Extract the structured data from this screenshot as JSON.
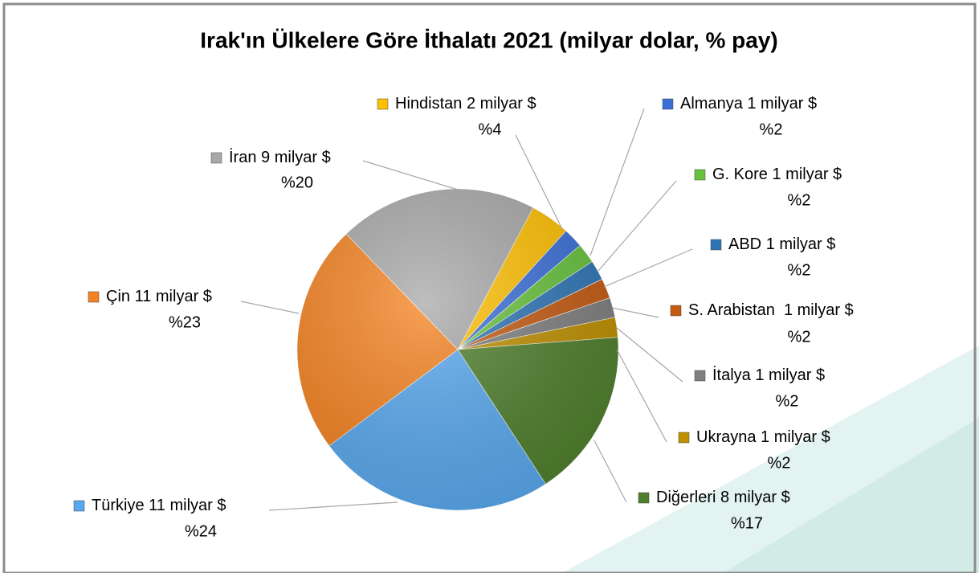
{
  "chart_data": {
    "type": "pie",
    "title": "Irak'ın Ülkelere Göre İthalatı 2021 (milyar dolar, % pay)",
    "categories": [
      "Hindistan",
      "Almanya",
      "G. Kore",
      "ABD",
      "S. Arabistan ",
      "İtalya",
      "Ukrayna",
      "Diğerleri",
      "Türkiye",
      "Çin",
      "İran"
    ],
    "amounts": [
      2,
      1,
      1,
      1,
      1,
      1,
      1,
      8,
      11,
      11,
      9
    ],
    "amount_labels": [
      "2 milyar $",
      "1 milyar $",
      "1 milyar $",
      "1 milyar $",
      "1 milyar $",
      "1 milyar $",
      "1 milyar $",
      "8 milyar $",
      "11 milyar $",
      "11 milyar $",
      "9 milyar $"
    ],
    "values": [
      4,
      2,
      2,
      2,
      2,
      2,
      2,
      17,
      24,
      23,
      20
    ],
    "value_labels": [
      "%4",
      "%2",
      "%2",
      "%2",
      "%2",
      "%2",
      "%2",
      "%17",
      "%24",
      "%23",
      "%20"
    ],
    "colors": [
      "#ffc000",
      "#3a6fd8",
      "#66c23c",
      "#2e75b6",
      "#c55a11",
      "#7f7f7f",
      "#bf9000",
      "#4f7f2c",
      "#58a8ef",
      "#f58220",
      "#a8a8a8"
    ]
  }
}
